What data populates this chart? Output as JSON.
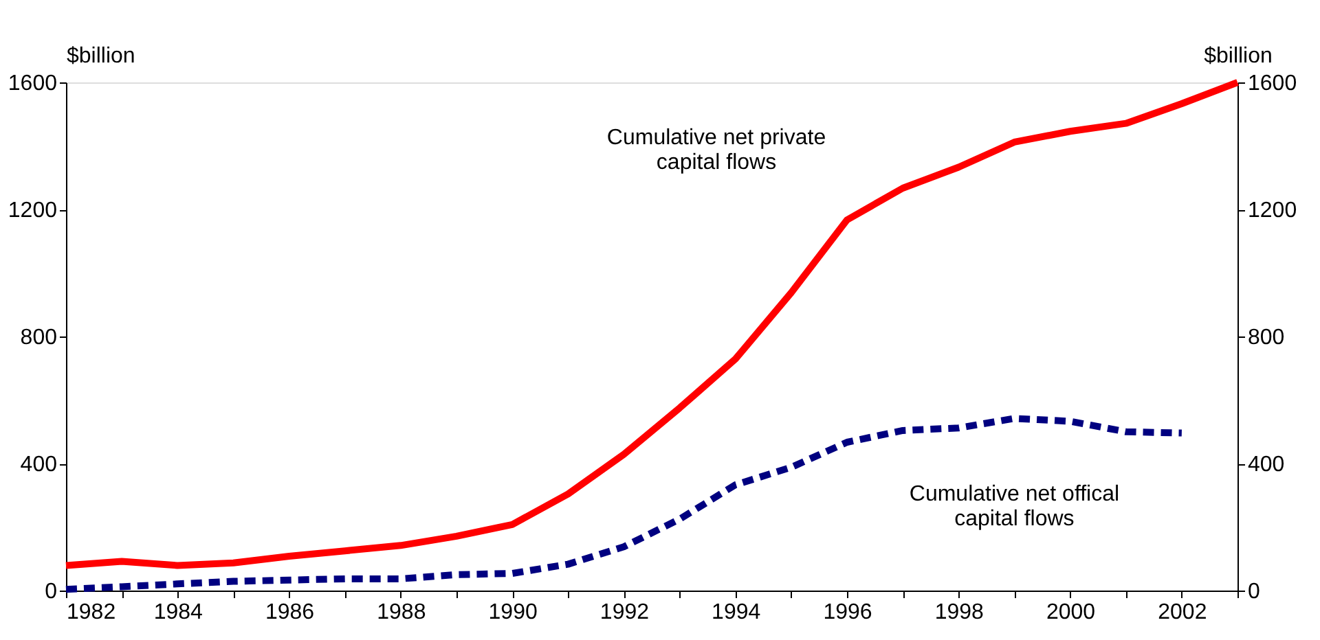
{
  "chart_data": {
    "type": "line",
    "ylabel": "$billion",
    "y2label": "$billion",
    "x": [
      1982,
      1983,
      1984,
      1985,
      1986,
      1987,
      1988,
      1989,
      1990,
      1991,
      1992,
      1993,
      1994,
      1995,
      1996,
      1997,
      1998,
      1999,
      2000,
      2001,
      2002,
      2003
    ],
    "series": [
      {
        "name": "Cumulative net private\ncapital flows",
        "color": "#ff0000",
        "line_style": "solid",
        "values": [
          79,
          92,
          79,
          87,
          108,
          125,
          142,
          171,
          208,
          304,
          429,
          575,
          729,
          938,
          1167,
          1267,
          1333,
          1412,
          1446,
          1471,
          1533,
          1600
        ]
      },
      {
        "name": "Cumulative net offical\ncapital flows",
        "color": "#000080",
        "line_style": "dashed",
        "values": [
          4,
          12,
          21,
          29,
          33,
          37,
          37,
          50,
          54,
          83,
          138,
          225,
          333,
          388,
          467,
          504,
          512,
          542,
          533,
          500,
          496,
          null
        ]
      }
    ],
    "xlim": [
      1982,
      2003
    ],
    "xticks": [
      1982,
      {
        "value": 1983,
        "label": null
      },
      1984,
      {
        "value": 1985,
        "label": null
      },
      1986,
      {
        "value": 1987,
        "label": null
      },
      1988,
      {
        "value": 1989,
        "label": null
      },
      1990,
      {
        "value": 1991,
        "label": null
      },
      1992,
      {
        "value": 1993,
        "label": null
      },
      1994,
      {
        "value": 1995,
        "label": null
      },
      1996,
      {
        "value": 1997,
        "label": null
      },
      1998,
      {
        "value": 1999,
        "label": null
      },
      2000,
      {
        "value": 2001,
        "label": null
      },
      2002,
      {
        "value": 2003,
        "label": null
      }
    ],
    "ylim": [
      0,
      1600
    ],
    "yticks": [
      0,
      400,
      800,
      1200,
      1600
    ],
    "y2lim": [
      0,
      1600
    ],
    "y2ticks": [
      0,
      400,
      800,
      1200,
      1600
    ],
    "grid": false,
    "legend": false,
    "marker": "none"
  }
}
